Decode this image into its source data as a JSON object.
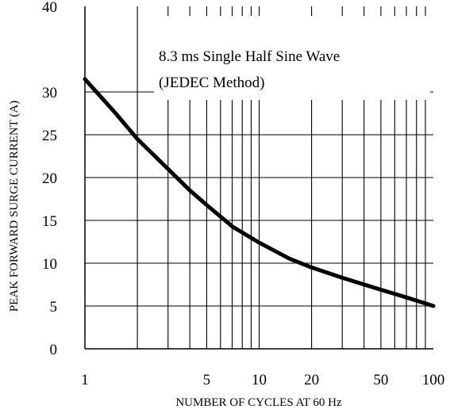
{
  "chart_data": {
    "type": "line",
    "title": "",
    "xlabel": "NUMBER OF CYCLES AT 60 Hz",
    "ylabel": "PEAK FORWARD SURGE CURRENT (A)",
    "x_scale": "log",
    "xlim": [
      1,
      100
    ],
    "ylim": [
      0,
      40
    ],
    "x_tick_labels": [
      "1",
      "5",
      "10",
      "20",
      "50",
      "100"
    ],
    "x_tick_values": [
      1,
      5,
      10,
      20,
      50,
      100
    ],
    "y_tick_labels": [
      "0",
      "5",
      "10",
      "15",
      "20",
      "25",
      "30",
      "40"
    ],
    "y_tick_values": [
      0,
      5,
      10,
      15,
      20,
      25,
      30,
      40
    ],
    "grid": true,
    "annotations": [
      "8.3 ms Single Half Sine Wave",
      "(JEDEC Method)"
    ],
    "series": [
      {
        "x": [
          1,
          1.5,
          2,
          3,
          4,
          5,
          7,
          10,
          15,
          20,
          30,
          50,
          70,
          100
        ],
        "y": [
          31.5,
          27.5,
          24.5,
          21,
          18.5,
          16.8,
          14.3,
          12.4,
          10.5,
          9.5,
          8.3,
          6.9,
          6.0,
          5.0
        ]
      }
    ],
    "line_color": "#000000"
  }
}
